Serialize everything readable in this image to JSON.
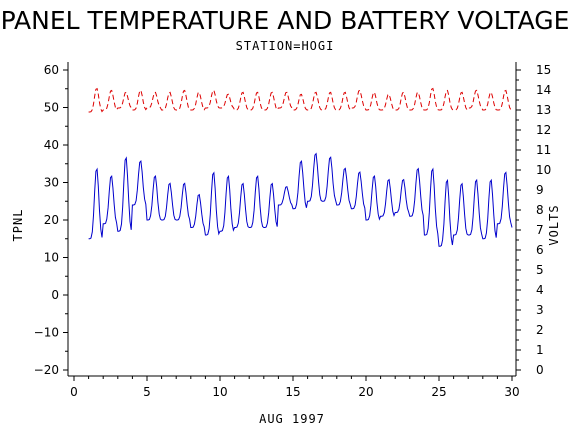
{
  "chart_data": {
    "type": "line",
    "title": "PANEL TEMPERATURE AND BATTERY VOLTAGE",
    "subtitle": "STATION=HOGI",
    "xlabel": "AUG 1997",
    "ylabel": "TPNL",
    "y2label": "VOLTS",
    "xlim": [
      0,
      30
    ],
    "ylim": [
      -20,
      60
    ],
    "y2lim": [
      0,
      15
    ],
    "x_ticks": [
      0,
      5,
      10,
      15,
      20,
      25,
      30
    ],
    "y_ticks": [
      -20,
      -10,
      0,
      10,
      20,
      30,
      40,
      50,
      60
    ],
    "y2_ticks": [
      0,
      1,
      2,
      3,
      4,
      5,
      6,
      7,
      8,
      9,
      10,
      11,
      12,
      13,
      14,
      15
    ],
    "grid": false,
    "series": [
      {
        "axis": "left",
        "color": "#0000cc",
        "style": "solid",
        "daily_min": [
          15,
          19,
          17,
          24,
          20,
          20,
          20,
          18,
          16,
          17,
          18,
          18,
          18,
          24,
          23,
          25,
          25,
          24,
          23,
          20,
          21,
          22,
          21,
          16,
          13,
          16,
          16,
          15,
          19,
          18
        ],
        "daily_max": [
          34,
          32,
          37,
          36,
          32,
          30,
          30,
          27,
          33,
          32,
          30,
          32,
          30,
          29,
          36,
          38,
          37,
          34,
          33,
          32,
          31,
          31,
          34,
          34,
          31,
          30,
          31,
          31,
          33,
          33
        ],
        "x_start": 1.0,
        "x_end": 30.0
      },
      {
        "axis": "right",
        "color": "#dd0000",
        "style": "dashed",
        "daily_min": [
          12.9,
          13.0,
          13.1,
          13.0,
          13.1,
          13.0,
          13.0,
          13.0,
          13.1,
          13.1,
          13.0,
          13.0,
          13.0,
          13.1,
          13.0,
          13.0,
          13.0,
          13.0,
          13.1,
          13.0,
          13.0,
          13.0,
          13.0,
          13.0,
          13.0,
          13.0,
          13.1,
          13.0,
          13.0,
          13.0
        ],
        "daily_max": [
          14.1,
          14.0,
          13.9,
          14.0,
          13.9,
          13.9,
          14.0,
          13.9,
          14.0,
          13.8,
          13.9,
          13.9,
          13.9,
          13.9,
          13.8,
          13.9,
          13.9,
          13.9,
          14.0,
          13.9,
          13.8,
          13.9,
          13.9,
          14.1,
          14.0,
          13.9,
          14.0,
          13.9,
          14.0,
          13.9
        ],
        "x_start": 1.0,
        "x_end": 30.0
      }
    ]
  }
}
